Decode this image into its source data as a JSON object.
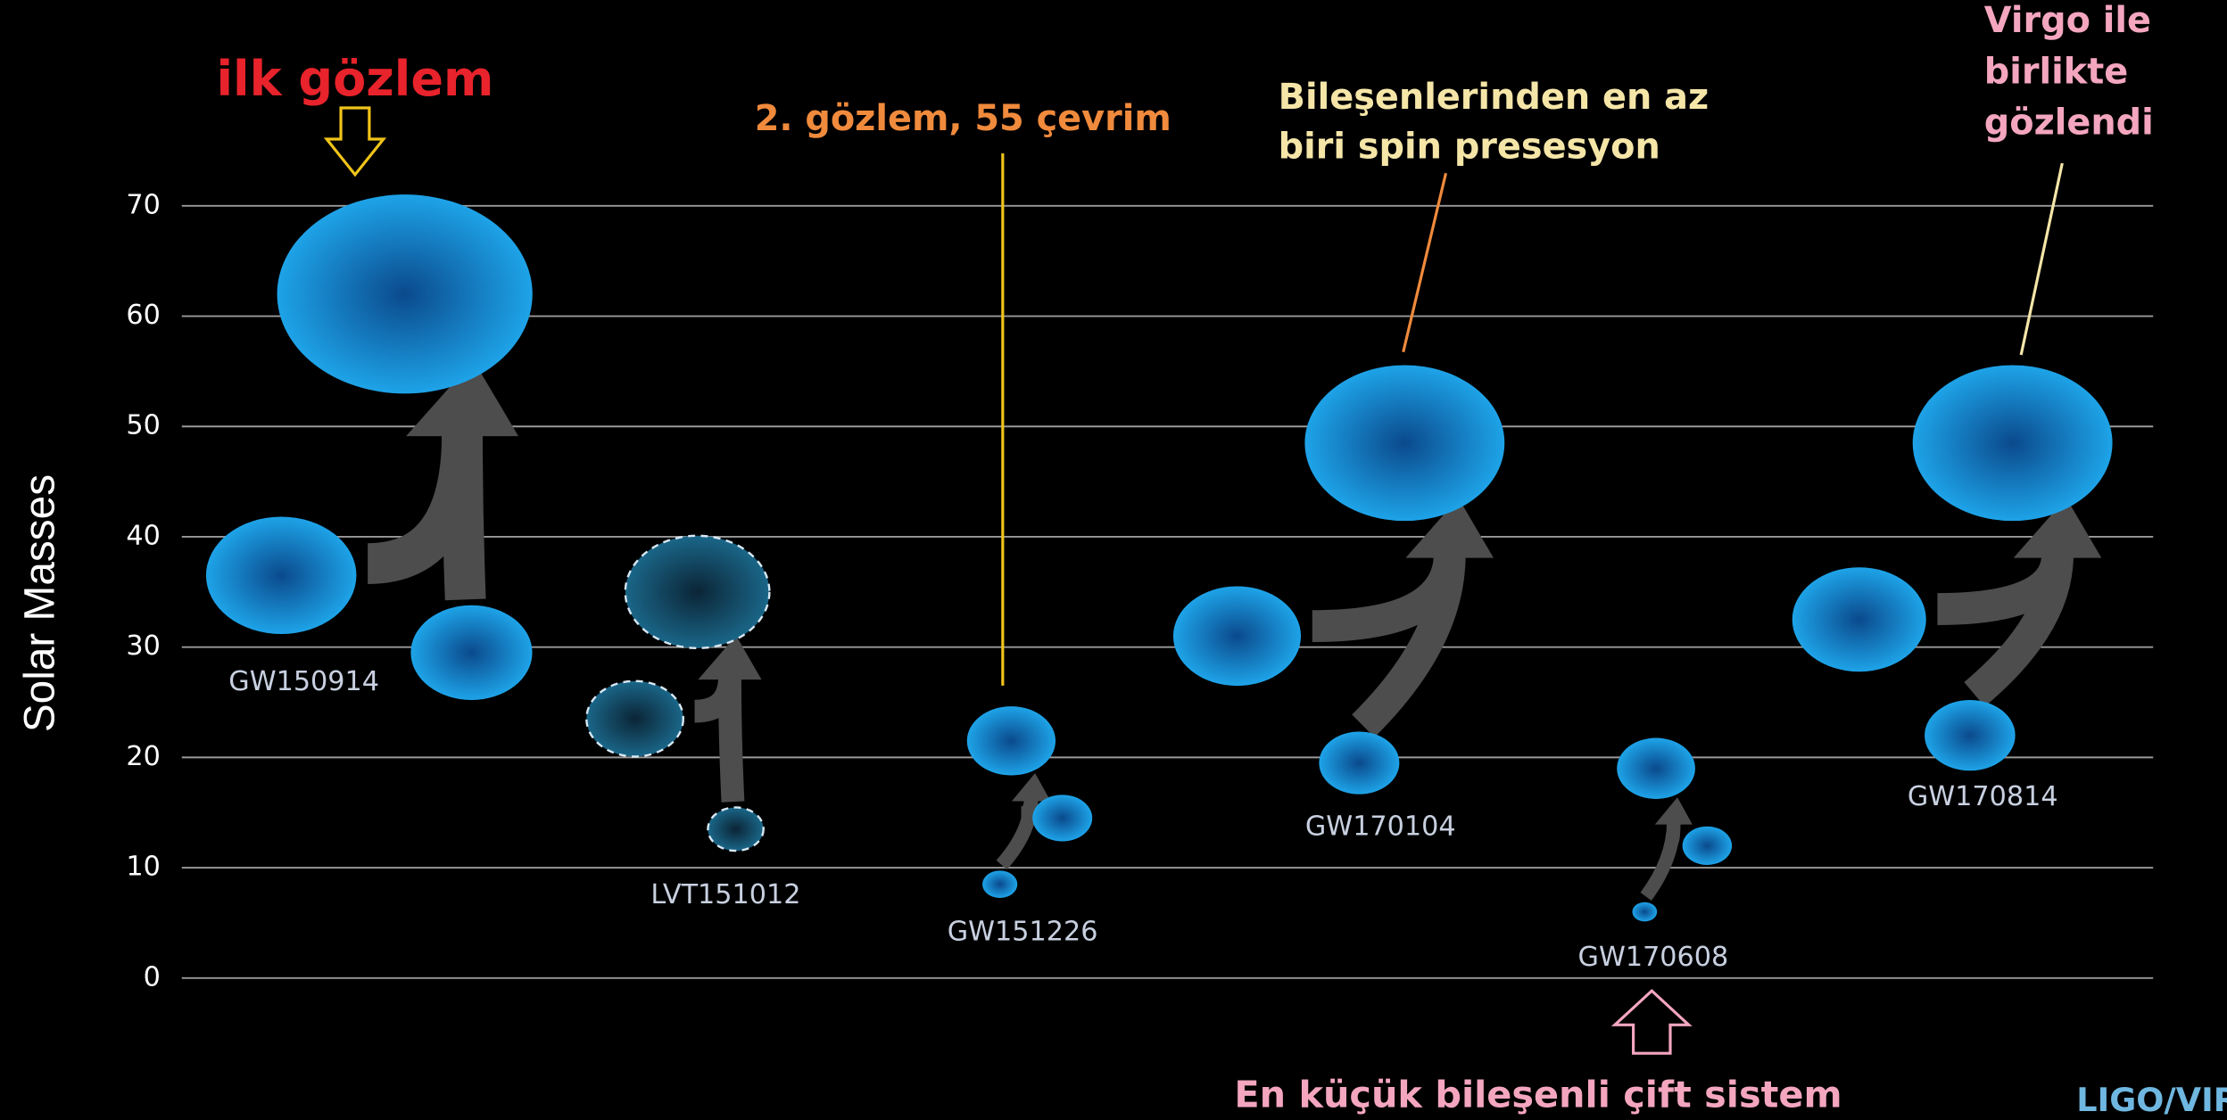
{
  "chart_data": {
    "type": "bubble",
    "y_label": "Solar Masses",
    "ylim": [
      0,
      70
    ],
    "yticks": [
      0,
      10,
      20,
      30,
      40,
      50,
      60,
      70
    ],
    "grid": true,
    "color": "#1e9be0",
    "events": [
      {
        "name": "GW150914",
        "values": [
          36.5,
          29.5,
          62
        ]
      },
      {
        "name": "LVT151012",
        "values": [
          23.5,
          13.5,
          35
        ],
        "dashed": true
      },
      {
        "name": "GW151226",
        "values": [
          14.5,
          8.5,
          21.5
        ]
      },
      {
        "name": "GW170104",
        "values": [
          31,
          19.5,
          48.5
        ]
      },
      {
        "name": "GW170608",
        "values": [
          12,
          6,
          19
        ]
      },
      {
        "name": "GW170814",
        "values": [
          32.5,
          22,
          48.5
        ]
      }
    ],
    "annotations": {
      "first": "ilk gözlem",
      "second": "2. gözlem, 55 çevrim",
      "precession": [
        "Bileşenlerinden en az",
        "biri spin presesyon"
      ],
      "virgo": [
        "Virgo ile",
        "birlikte",
        "gözlendi"
      ],
      "smallest": "En küçük bileşenli çift sistem",
      "credit": "LIGO/VIRGO"
    }
  }
}
